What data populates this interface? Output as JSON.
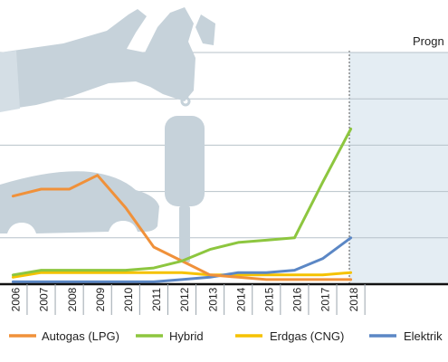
{
  "chart_data": {
    "type": "line",
    "x": [
      "2006",
      "2007",
      "2008",
      "2009",
      "2010",
      "2011",
      "2012",
      "2013",
      "2014",
      "2015",
      "2016",
      "2017",
      "2018"
    ],
    "xlim": [
      "2005.6",
      "2018.4"
    ],
    "ylim": [
      0,
      100
    ],
    "grid": true,
    "series": [
      {
        "name": "Autogas (LPG)",
        "color": "#f0913a",
        "values": [
          38,
          41,
          41,
          47,
          33,
          16,
          10,
          4,
          3,
          2,
          2,
          2,
          2
        ]
      },
      {
        "name": "Hybrid",
        "color": "#8dc63f",
        "values": [
          4,
          6,
          6,
          6,
          6,
          7,
          10,
          15,
          18,
          19,
          20,
          44,
          67
        ]
      },
      {
        "name": "Erdgas (CNG)",
        "color": "#f5c200",
        "values": [
          3,
          5,
          5,
          5,
          5,
          5,
          5,
          4,
          4,
          4,
          4,
          4,
          5
        ]
      },
      {
        "name": "Elektrik",
        "color": "#5b87c5",
        "values": [
          1,
          1,
          1,
          1,
          1,
          1,
          2,
          3,
          5,
          5,
          6,
          11,
          20
        ]
      }
    ],
    "annotations": [
      {
        "text": "Progn",
        "from": "2015.5",
        "to": "2018.4"
      }
    ],
    "legend": "bottom"
  },
  "colors": {
    "forecast_shade": "#e4edf3",
    "silhouette": "#c6d2da",
    "axis": "#111111",
    "grid": "#b7c2ca"
  },
  "icons": {
    "illustration": "hand-holding-car-key-and-car-silhouette"
  }
}
